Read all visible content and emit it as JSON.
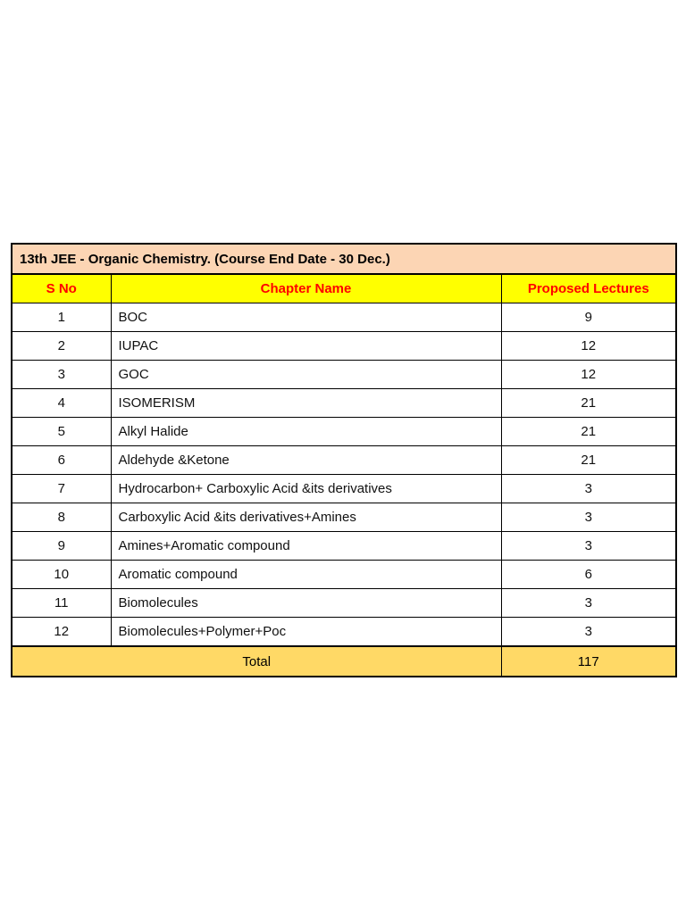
{
  "table": {
    "title": "13th JEE  - Organic Chemistry. (Course End Date - 30 Dec.)",
    "headers": {
      "s_no": "S No",
      "chapter": "Chapter Name",
      "lectures": "Proposed Lectures"
    },
    "rows": [
      {
        "s_no": "1",
        "chapter": "BOC",
        "lectures": "9"
      },
      {
        "s_no": "2",
        "chapter": "IUPAC",
        "lectures": "12"
      },
      {
        "s_no": "3",
        "chapter": "GOC",
        "lectures": "12"
      },
      {
        "s_no": "4",
        "chapter": "ISOMERISM",
        "lectures": "21"
      },
      {
        "s_no": "5",
        "chapter": "Alkyl Halide",
        "lectures": "21"
      },
      {
        "s_no": "6",
        "chapter": "Aldehyde &Ketone",
        "lectures": "21"
      },
      {
        "s_no": "7",
        "chapter": "Hydrocarbon+ Carboxylic Acid &its derivatives",
        "lectures": "3"
      },
      {
        "s_no": "8",
        "chapter": "Carboxylic Acid &its derivatives+Amines",
        "lectures": "3"
      },
      {
        "s_no": "9",
        "chapter": "Amines+Aromatic compound",
        "lectures": "3"
      },
      {
        "s_no": "10",
        "chapter": "Aromatic compound",
        "lectures": "6"
      },
      {
        "s_no": "11",
        "chapter": "Biomolecules",
        "lectures": "3"
      },
      {
        "s_no": "12",
        "chapter": "Biomolecules+Polymer+Poc",
        "lectures": "3"
      }
    ],
    "total": {
      "label": "Total",
      "value": "117"
    },
    "colors": {
      "title_bg": "#FCD5B4",
      "header_bg": "#FFFF00",
      "header_text": "#FF0000",
      "total_bg": "#FFD966",
      "border": "#000000",
      "page_bg": "#FFFFFF"
    }
  }
}
